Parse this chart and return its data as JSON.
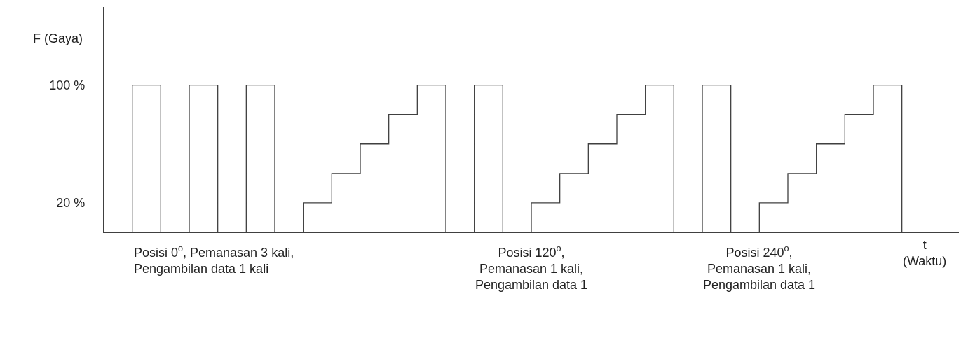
{
  "chart_data": {
    "type": "step",
    "ylabel": "F (Gaya)",
    "xlabel": "t\n(Waktu)",
    "categories": [
      null,
      null,
      null,
      null,
      null,
      null,
      null,
      null,
      null,
      null,
      null,
      null,
      null,
      null,
      null,
      null,
      null,
      null,
      null,
      null,
      null,
      null,
      null,
      null,
      null,
      null,
      null,
      null,
      null,
      null,
      null
    ],
    "series": [
      {
        "color": "#404040",
        "values": [
          0,
          100,
          0,
          100,
          0,
          100,
          0,
          20,
          40,
          60,
          80,
          100,
          0,
          100,
          0,
          20,
          40,
          60,
          80,
          100,
          0,
          100,
          0,
          20,
          40,
          60,
          80,
          100,
          0,
          0,
          0
        ]
      }
    ],
    "ylim": [
      0,
      153
    ],
    "yticks": [
      {
        "value": 20,
        "label": "20 %"
      },
      {
        "value": 100,
        "label": "100 %"
      }
    ],
    "tick_labels": "y",
    "annotations": [
      "Posisi 0$^{o}$, Pemanasan 3 kali,\nPengambilan data 1 kali",
      "Posisi 120$^{o}$,\nPemanasan 1 kali,\nPengambilan data 1",
      "Posisi 240$^{o}$,\nPemanasan 1 kali,\nPengambilan data 1"
    ]
  }
}
